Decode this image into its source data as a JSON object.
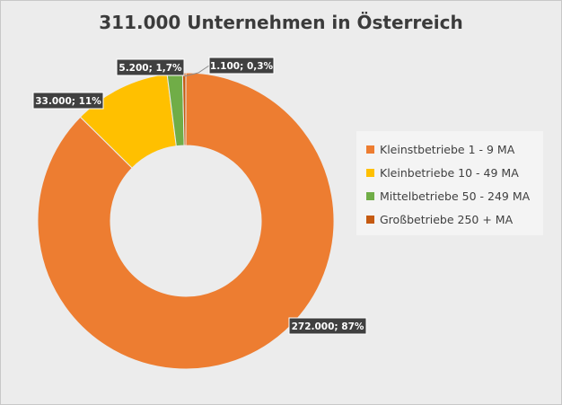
{
  "chart_data": {
    "type": "pie",
    "title": "311.000  Unternehmen in Österreich",
    "categories": [
      "Kleinstbetriebe 1 - 9 MA",
      "Kleinbetriebe 10 - 49 MA",
      "Mittelbetriebe 50 - 249 MA",
      "Großbetriebe 250 + MA"
    ],
    "values": [
      272000,
      33000,
      5200,
      1100
    ],
    "percent": [
      87,
      11,
      1.7,
      0.3
    ],
    "data_labels": [
      "272.000; 87%",
      "33.000; 11%",
      "5.200; 1,7%",
      "1.100; 0,3%"
    ],
    "colors": [
      "#ed7d31",
      "#ffc000",
      "#70ad47",
      "#c55a11"
    ],
    "legend_position": "right",
    "donut": true
  }
}
